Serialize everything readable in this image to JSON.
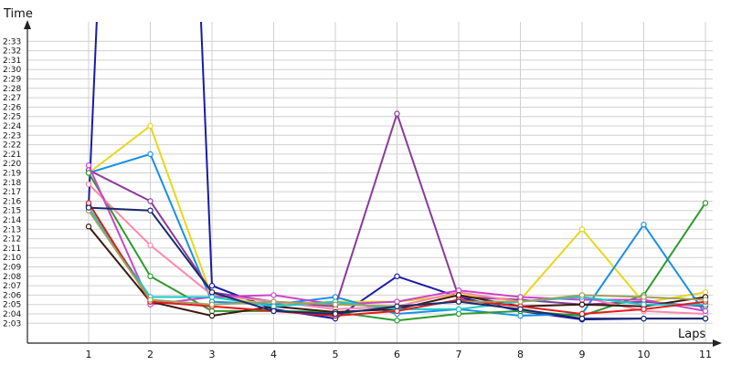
{
  "chart_data": {
    "type": "line",
    "ylabel": "Time",
    "xlabel": "Laps",
    "x": [
      1,
      2,
      3,
      4,
      5,
      6,
      7,
      8,
      9,
      10,
      11
    ],
    "x_tick_labels": [
      "1",
      "2",
      "3",
      "4",
      "5",
      "6",
      "7",
      "8",
      "9",
      "10",
      "11"
    ],
    "ylim": [
      182,
      154
    ],
    "ylim_comment_units": "seconds",
    "y_tick_labels": [
      "2:03",
      "2:04",
      "2:05",
      "2:06",
      "2:07",
      "2:08",
      "2:09",
      "2:10",
      "2:11",
      "2:12",
      "2:13",
      "2:14",
      "2:15",
      "2:16",
      "2:17",
      "2:18",
      "2:19",
      "2:20",
      "2:21",
      "2:22",
      "2:23",
      "2:24",
      "2:25",
      "2:26",
      "2:27",
      "2:28",
      "2:29",
      "2:30",
      "2:31",
      "2:32",
      "2:33"
    ],
    "grid": true,
    "series": [
      {
        "color": "#1a1aa8",
        "values": [
          135.5,
          285,
          127.0,
          124.5,
          123.5,
          128.0,
          125.8,
          124.3,
          123.4,
          123.5,
          123.5
        ]
      },
      {
        "color": "#e6d81a",
        "values": [
          139.0,
          144.0,
          125.8,
          125.0,
          125.3,
          125.3,
          126.0,
          125.5,
          133.0,
          125.2,
          126.3
        ]
      },
      {
        "color": "#1a8fe6",
        "values": [
          139.0,
          141.0,
          125.3,
          125.0,
          125.8,
          124.0,
          124.5,
          123.8,
          124.0,
          133.5,
          124.0
        ]
      },
      {
        "color": "#8a3a9a",
        "values": [
          139.3,
          136.0,
          126.3,
          125.3,
          124.8,
          145.3,
          125.8,
          125.5,
          125.0,
          125.3,
          124.8
        ]
      },
      {
        "color": "#2e9a2e",
        "values": [
          139.0,
          128.0,
          124.3,
          124.3,
          124.2,
          123.3,
          124.0,
          124.3,
          123.8,
          126.0,
          135.8
        ]
      },
      {
        "color": "#ff88aa",
        "values": [
          137.8,
          131.3,
          126.0,
          125.3,
          124.5,
          124.8,
          126.3,
          125.3,
          125.8,
          124.3,
          124.0
        ]
      },
      {
        "color": "#cc44cc",
        "values": [
          139.8,
          125.0,
          125.8,
          126.0,
          125.0,
          125.3,
          126.5,
          125.8,
          125.5,
          125.5,
          124.3
        ]
      },
      {
        "color": "#3a1a10",
        "values": [
          133.3,
          125.3,
          123.8,
          124.8,
          124.2,
          124.5,
          126.0,
          124.8,
          125.0,
          124.8,
          125.8
        ]
      },
      {
        "color": "#1ac8c8",
        "values": [
          135.3,
          125.8,
          125.8,
          124.8,
          125.3,
          124.5,
          124.5,
          125.3,
          125.8,
          125.0,
          125.0
        ]
      },
      {
        "color": "#e61a1a",
        "values": [
          135.8,
          125.3,
          124.8,
          124.3,
          123.8,
          124.3,
          125.5,
          124.8,
          124.0,
          124.5,
          125.3
        ]
      },
      {
        "color": "#a0a060",
        "values": [
          135.0,
          125.5,
          125.0,
          125.3,
          125.0,
          124.8,
          125.3,
          125.3,
          126.0,
          125.8,
          125.5
        ]
      },
      {
        "color": "#1a2a70",
        "values": [
          135.3,
          135.0,
          126.3,
          124.3,
          124.0,
          124.8,
          125.3,
          124.5,
          123.5,
          123.5,
          123.5
        ]
      }
    ]
  }
}
